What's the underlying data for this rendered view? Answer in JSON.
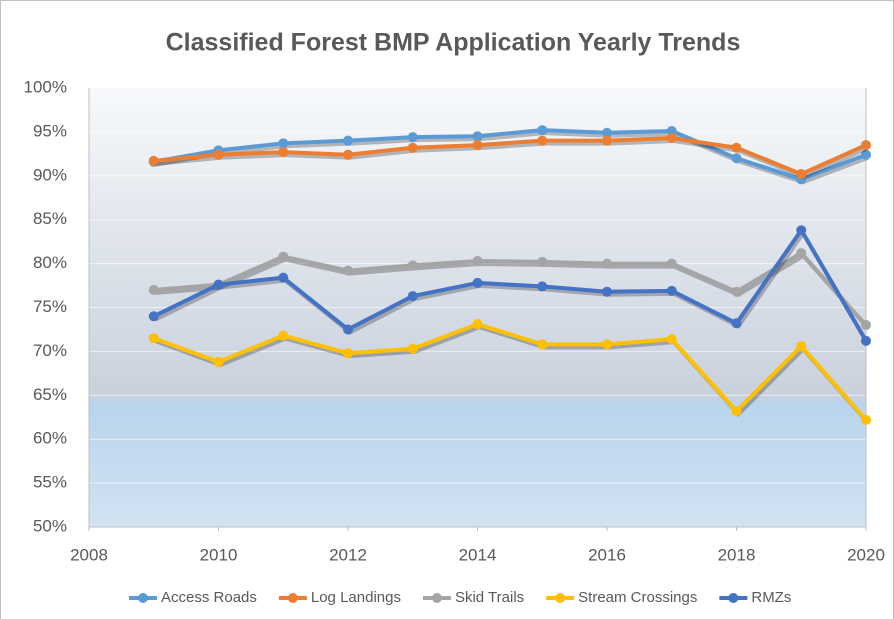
{
  "chart_data": {
    "type": "line",
    "title": "Classified Forest BMP Application Yearly Trends",
    "x": [
      2009,
      2010,
      2011,
      2012,
      2013,
      2014,
      2015,
      2016,
      2017,
      2018,
      2019,
      2020
    ],
    "series": [
      {
        "name": "Access Roads",
        "color": "#5b9bd5",
        "values": [
          91.6,
          92.9,
          93.7,
          94.0,
          94.4,
          94.5,
          95.2,
          94.9,
          95.1,
          92.0,
          89.6,
          92.4
        ]
      },
      {
        "name": "Log Landings",
        "color": "#ed7d31",
        "values": [
          91.7,
          92.4,
          92.7,
          92.4,
          93.2,
          93.5,
          94.0,
          94.0,
          94.3,
          93.2,
          90.2,
          93.5
        ]
      },
      {
        "name": "Skid Trails",
        "color": "#a5a5a5",
        "values": [
          77.0,
          77.6,
          80.8,
          79.2,
          79.8,
          80.3,
          80.2,
          80.0,
          80.0,
          76.8,
          81.2,
          73.0
        ]
      },
      {
        "name": "Stream Crossings",
        "color": "#ffc000",
        "values": [
          71.5,
          68.8,
          71.8,
          69.8,
          70.3,
          73.1,
          70.8,
          70.8,
          71.4,
          63.2,
          70.6,
          62.2
        ]
      },
      {
        "name": "RMZs",
        "color": "#4472c4",
        "values": [
          74.0,
          77.6,
          78.4,
          72.5,
          76.3,
          77.8,
          77.4,
          76.8,
          76.9,
          73.2,
          83.8,
          71.2
        ]
      }
    ],
    "xlim": [
      2008,
      2020
    ],
    "xticks": [
      2008,
      2010,
      2012,
      2014,
      2016,
      2018,
      2020
    ],
    "ylim": [
      50,
      100
    ],
    "yticks": [
      {
        "value": 50,
        "label": "50%"
      },
      {
        "value": 55,
        "label": "55%"
      },
      {
        "value": 60,
        "label": "60%"
      },
      {
        "value": 65,
        "label": "65%"
      },
      {
        "value": 70,
        "label": "70%"
      },
      {
        "value": 75,
        "label": "75%"
      },
      {
        "value": 80,
        "label": "80%"
      },
      {
        "value": 85,
        "label": "85%"
      },
      {
        "value": 90,
        "label": "90%"
      },
      {
        "value": 95,
        "label": "95%"
      },
      {
        "value": 100,
        "label": "100%"
      }
    ],
    "grid": true,
    "legend": "bottom"
  }
}
